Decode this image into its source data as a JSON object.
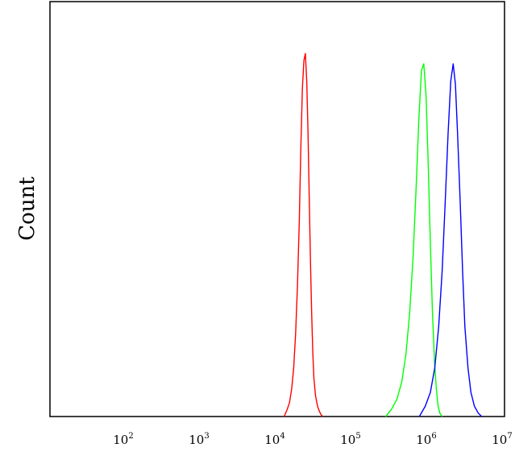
{
  "chart_data": {
    "type": "line",
    "title": "",
    "xlabel": "",
    "ylabel": "Count",
    "x_scale": "log",
    "xlim": [
      10,
      10000000
    ],
    "ylim": [
      0,
      1.2
    ],
    "grid": false,
    "legend": "none",
    "x_ticks": [
      {
        "base": "10",
        "exp": "2",
        "value": 100
      },
      {
        "base": "10",
        "exp": "3",
        "value": 1000
      },
      {
        "base": "10",
        "exp": "4",
        "value": 10000
      },
      {
        "base": "10",
        "exp": "5",
        "value": 100000
      },
      {
        "base": "10",
        "exp": "6",
        "value": 1000000
      },
      {
        "base": "10",
        "exp": "7",
        "value": 10000000
      }
    ],
    "series": [
      {
        "color": "#ff0000",
        "x": [
          12300,
          13500,
          14500,
          15500,
          16500,
          17500,
          18500,
          19500,
          20500,
          21500,
          22500,
          23500,
          24500,
          25500,
          26500,
          27500,
          28500,
          29500,
          30500,
          32000,
          34000,
          36000,
          38000,
          40000
        ],
        "y": [
          0,
          0.02,
          0.04,
          0.08,
          0.14,
          0.24,
          0.38,
          0.56,
          0.78,
          0.95,
          1.03,
          1.05,
          0.97,
          0.82,
          0.62,
          0.44,
          0.29,
          0.18,
          0.11,
          0.06,
          0.03,
          0.015,
          0.005,
          0
        ]
      },
      {
        "color": "#00ff00",
        "x": [
          270000,
          320000,
          380000,
          440000,
          500000,
          560000,
          620000,
          680000,
          740000,
          800000,
          860000,
          920000,
          980000,
          1050000,
          1120000,
          1190000,
          1260000,
          1330000,
          1400000,
          1500000
        ],
        "y": [
          0,
          0.02,
          0.05,
          0.1,
          0.18,
          0.3,
          0.46,
          0.66,
          0.86,
          1.0,
          1.02,
          0.93,
          0.74,
          0.5,
          0.3,
          0.16,
          0.08,
          0.03,
          0.01,
          0
        ]
      },
      {
        "color": "#0000ff",
        "x": [
          750000,
          900000,
          1050000,
          1200000,
          1350000,
          1500000,
          1650000,
          1800000,
          1950000,
          2100000,
          2250000,
          2400000,
          2600000,
          2800000,
          3000000,
          3300000,
          3600000,
          4000000,
          4500000,
          5000000
        ],
        "y": [
          0,
          0.03,
          0.07,
          0.14,
          0.26,
          0.42,
          0.62,
          0.82,
          0.97,
          1.02,
          0.96,
          0.82,
          0.62,
          0.42,
          0.26,
          0.14,
          0.07,
          0.03,
          0.01,
          0
        ]
      }
    ]
  }
}
